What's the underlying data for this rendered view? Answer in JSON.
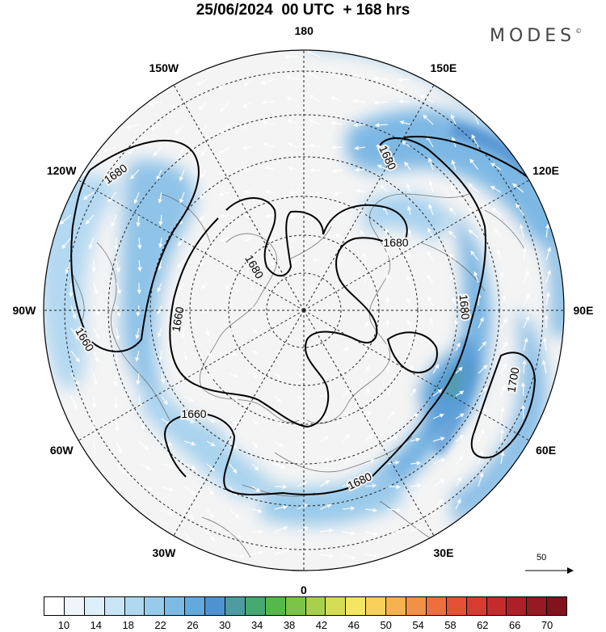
{
  "title": "25/06/2024  00 UTC  + 168 hrs",
  "brand": "MODES",
  "brand_mark": "©",
  "longitude_labels": [
    {
      "label": "180",
      "lon": 180
    },
    {
      "label": "150E",
      "lon": 150
    },
    {
      "label": "120E",
      "lon": 120
    },
    {
      "label": "90E",
      "lon": 90
    },
    {
      "label": "60E",
      "lon": 60
    },
    {
      "label": "30E",
      "lon": 30
    },
    {
      "label": "0",
      "lon": 0
    },
    {
      "label": "30W",
      "lon": -30
    },
    {
      "label": "60W",
      "lon": -60
    },
    {
      "label": "90W",
      "lon": -90
    },
    {
      "label": "120W",
      "lon": -120
    },
    {
      "label": "150W",
      "lon": -150
    }
  ],
  "contour_labels": [
    "1680",
    "1680",
    "1680",
    "1660",
    "1660",
    "1660",
    "1680",
    "1680",
    "1680",
    "1700"
  ],
  "colorbar": {
    "tick_labels": [
      "10",
      "14",
      "18",
      "22",
      "26",
      "30",
      "34",
      "38",
      "42",
      "46",
      "50",
      "54",
      "58",
      "62",
      "66",
      "70"
    ],
    "colors": [
      "#ffffff",
      "#eef6fc",
      "#ddeff9",
      "#c8e5f6",
      "#b0d9f1",
      "#97cbec",
      "#7dbbe5",
      "#64a9dc",
      "#5092cf",
      "#4f9ca0",
      "#46a870",
      "#56b84a",
      "#7cc447",
      "#a9d04c",
      "#d5dd55",
      "#f4e562",
      "#f9d15a",
      "#f6b24f",
      "#f29146",
      "#ec6f3d",
      "#e65035",
      "#d83b30",
      "#c42c2b",
      "#ae2027",
      "#981823",
      "#83121e"
    ]
  },
  "vector_reference": "50"
}
